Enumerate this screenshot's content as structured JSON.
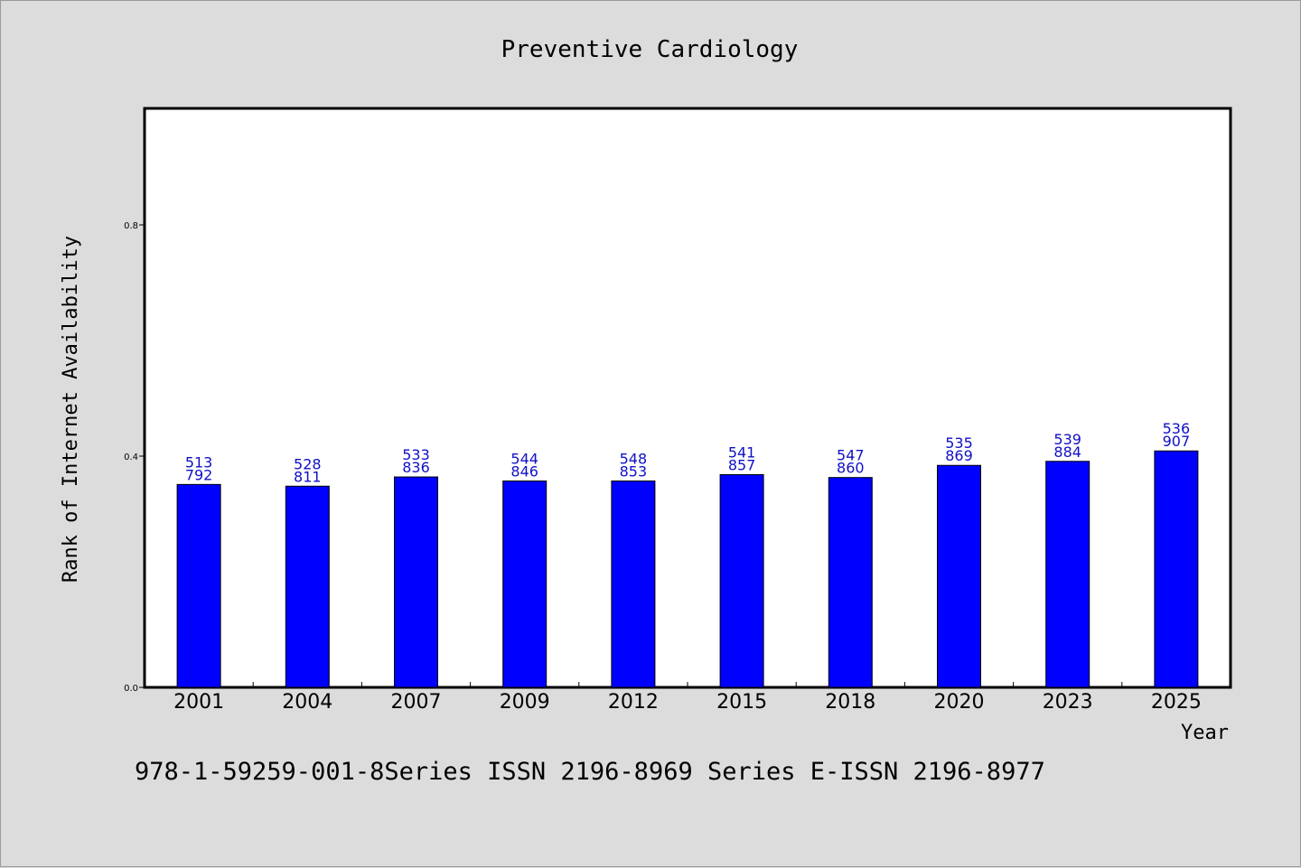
{
  "chart_data": {
    "type": "bar",
    "title": "Preventive Cardiology",
    "xlabel": "Year",
    "ylabel": "Rank of Internet Availability",
    "categories": [
      "2001",
      "2004",
      "2007",
      "2009",
      "2012",
      "2015",
      "2018",
      "2020",
      "2023",
      "2025"
    ],
    "values": [
      0.351,
      0.348,
      0.364,
      0.357,
      0.357,
      0.368,
      0.363,
      0.384,
      0.391,
      0.409
    ],
    "data_labels": [
      [
        "513",
        "792"
      ],
      [
        "528",
        "811"
      ],
      [
        "533",
        "836"
      ],
      [
        "544",
        "846"
      ],
      [
        "548",
        "853"
      ],
      [
        "541",
        "857"
      ],
      [
        "547",
        "860"
      ],
      [
        "535",
        "869"
      ],
      [
        "539",
        "884"
      ],
      [
        "536",
        "907"
      ]
    ],
    "yticks": [
      "0.0",
      "0.4",
      "0.8"
    ],
    "ylim": [
      0,
      1.0
    ],
    "grid": false,
    "legend": "none",
    "bar_color": "#0000ff",
    "label_color": "#1010c8"
  },
  "footer": {
    "text": "978-1-59259-001-8Series ISSN 2196-8969 Series E-ISSN 2196-8977"
  }
}
